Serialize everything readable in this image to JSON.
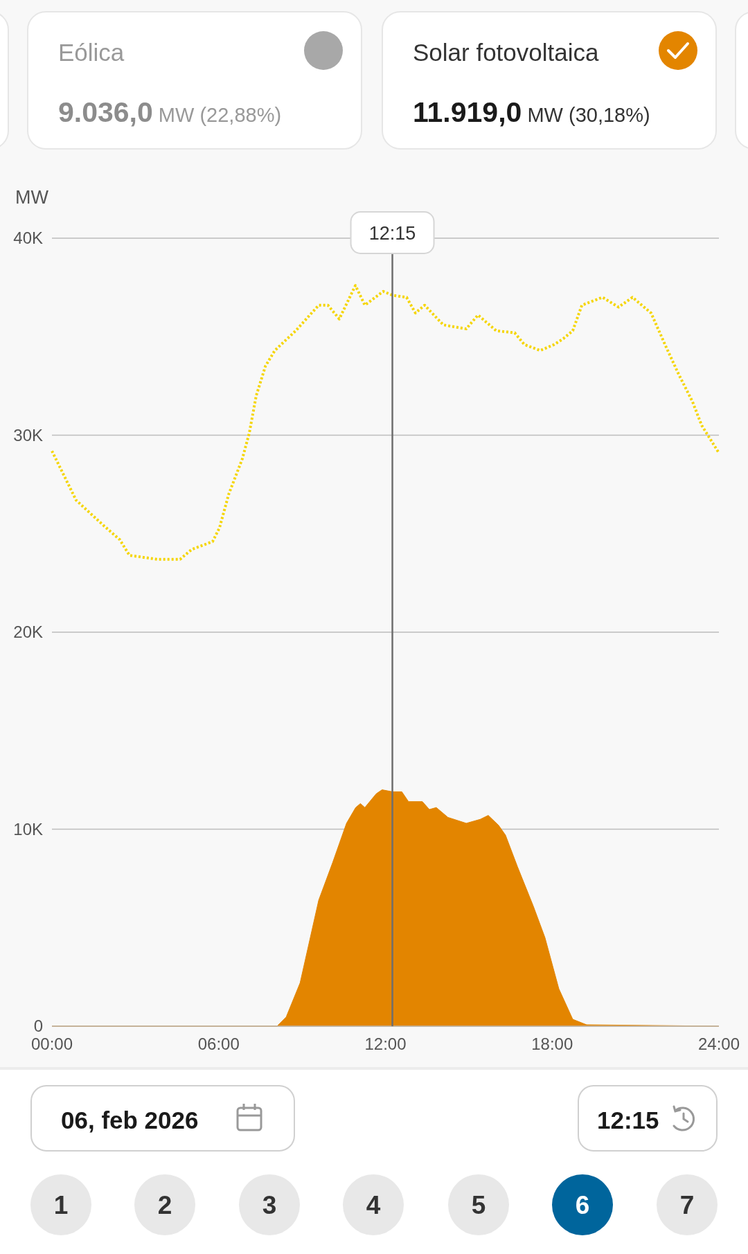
{
  "chart_data": {
    "type": "area",
    "ylabel": "MW",
    "xlim": [
      0,
      24
    ],
    "xticks": [
      {
        "value": 0,
        "label": "00:00"
      },
      {
        "value": 6,
        "label": "06:00"
      },
      {
        "value": 12,
        "label": "12:00"
      },
      {
        "value": 18,
        "label": "18:00"
      },
      {
        "value": 24,
        "label": "24:00"
      }
    ],
    "ylim": [
      0,
      40000
    ],
    "yticks": [
      0,
      {
        "value": 10000,
        "label": "10K"
      },
      {
        "value": 20000,
        "label": "20K"
      },
      {
        "value": 30000,
        "label": "30K"
      },
      {
        "value": 40000,
        "label": "40K"
      }
    ],
    "grid": "y",
    "series": [
      {
        "type": "line",
        "color": "#f5d500",
        "line_style": "dotted",
        "x": [
          0,
          0.87,
          1.87,
          2.44,
          2.79,
          3.79,
          4.61,
          5.03,
          5.78,
          6.03,
          6.36,
          6.85,
          7.1,
          7.35,
          7.68,
          8.02,
          8.77,
          9.6,
          9.93,
          10.34,
          10.92,
          11.26,
          11.92,
          12.26,
          12.76,
          13.08,
          13.41,
          14.08,
          14.91,
          15.33,
          15.99,
          16.65,
          17.0,
          17.57,
          18.07,
          18.4,
          18.74,
          19.07,
          19.81,
          20.39,
          20.89,
          21.56,
          22.06,
          22.55,
          23.05,
          23.38,
          24
        ],
        "values": [
          29200,
          26700,
          25400,
          24700,
          23900,
          23700,
          23700,
          24200,
          24600,
          25300,
          27000,
          28800,
          30100,
          32000,
          33500,
          34300,
          35300,
          36600,
          36600,
          35900,
          37600,
          36600,
          37300,
          37100,
          37000,
          36200,
          36600,
          35600,
          35400,
          36100,
          35300,
          35200,
          34600,
          34300,
          34600,
          34900,
          35300,
          36600,
          37000,
          36500,
          37000,
          36200,
          34600,
          33100,
          31700,
          30500,
          29100
        ]
      },
      {
        "color": "#e38500",
        "x": [
          0,
          8.1,
          8.43,
          8.93,
          9.6,
          10.1,
          10.6,
          10.93,
          11.1,
          11.26,
          11.67,
          11.88,
          12.26,
          12.59,
          12.83,
          13.33,
          13.58,
          13.83,
          14.25,
          14.91,
          15.41,
          15.7,
          16.07,
          16.32,
          16.75,
          17.32,
          17.74,
          18.24,
          18.74,
          19.24,
          24
        ],
        "values": [
          0,
          0,
          470,
          2200,
          6400,
          8300,
          10300,
          11100,
          11300,
          11100,
          11800,
          12000,
          11900,
          11900,
          11400,
          11400,
          11000,
          11100,
          10600,
          10300,
          10500,
          10700,
          10200,
          9700,
          8100,
          6100,
          4500,
          1900,
          350,
          70,
          0
        ]
      }
    ],
    "ref_lines": [
      {
        "axis": "x",
        "value": 12.25,
        "label": "12:15",
        "color": "#6e6e6e"
      }
    ],
    "annotations": [
      "Eólica",
      "9.036,0 MW (22,88%)",
      "Solar fotovoltaica",
      "11.919,0 MW (30,18%)",
      "06, feb 2026",
      "12:15",
      "1",
      "2",
      "3",
      "4",
      "5",
      "6",
      "7"
    ]
  }
}
